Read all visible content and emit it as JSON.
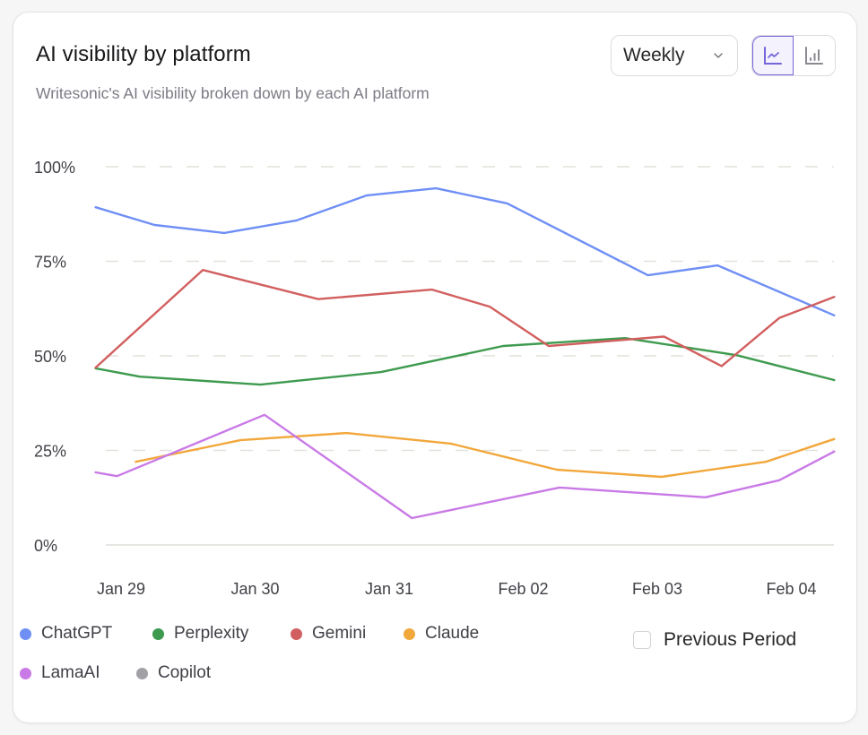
{
  "card": {
    "title": "AI visibility by platform",
    "subtitle": "Writesonic's AI visibility broken down by each AI platform"
  },
  "controls": {
    "period_select": {
      "value": "Weekly",
      "icon": "chevron-down-icon"
    },
    "view_toggle": [
      {
        "name": "line-chart-view",
        "icon": "line-chart-icon",
        "active": true
      },
      {
        "name": "bar-chart-view",
        "icon": "bar-chart-icon",
        "active": false
      }
    ],
    "accent_color": "#7566d9"
  },
  "previous_period": {
    "label": "Previous Period",
    "checked": false
  },
  "chart_data": {
    "type": "line",
    "title": "AI visibility by platform",
    "xlabel": "",
    "ylabel": "",
    "x_ticks": [
      "Jan 29",
      "Jan 30",
      "Jan 31",
      "Feb 02",
      "Feb 03",
      "Feb 04"
    ],
    "x_range": [
      -0.19,
      5.32
    ],
    "x_note": "x values are positions in tick units (Jan 29 = 0, each tick = 1)",
    "y_ticks": [
      "0%",
      "25%",
      "50%",
      "75%",
      "100%"
    ],
    "y_tick_values": [
      0,
      25,
      50,
      75,
      100
    ],
    "ylim": [
      0,
      100
    ],
    "grid": true,
    "legend_position": "bottom-left",
    "series": [
      {
        "name": "ChatGPT",
        "color": "#6f8ff5",
        "points": [
          [
            -0.19,
            89.3
          ],
          [
            0.25,
            84.6
          ],
          [
            0.77,
            82.5
          ],
          [
            1.31,
            85.8
          ],
          [
            1.83,
            92.4
          ],
          [
            2.35,
            94.3
          ],
          [
            2.88,
            90.3
          ],
          [
            3.93,
            71.3
          ],
          [
            4.45,
            73.9
          ],
          [
            5.32,
            60.7
          ]
        ]
      },
      {
        "name": "Perplexity",
        "color": "#3d9a4e",
        "points": [
          [
            -0.19,
            46.7
          ],
          [
            0.14,
            44.5
          ],
          [
            1.04,
            42.4
          ],
          [
            1.94,
            45.7
          ],
          [
            2.85,
            52.6
          ],
          [
            3.76,
            54.7
          ],
          [
            4.59,
            50.2
          ],
          [
            5.32,
            43.6
          ]
        ]
      },
      {
        "name": "Gemini",
        "color": "#d25f5f",
        "points": [
          [
            -0.19,
            46.9
          ],
          [
            0.61,
            72.7
          ],
          [
            1.47,
            65.0
          ],
          [
            2.32,
            67.5
          ],
          [
            2.75,
            63.0
          ],
          [
            3.19,
            52.6
          ],
          [
            4.05,
            55.1
          ],
          [
            4.48,
            47.3
          ],
          [
            4.91,
            60.0
          ],
          [
            5.32,
            65.6
          ]
        ]
      },
      {
        "name": "Claude",
        "color": "#f2a73b",
        "points": [
          [
            0.11,
            22.0
          ],
          [
            0.89,
            27.7
          ],
          [
            1.68,
            29.6
          ],
          [
            2.46,
            26.8
          ],
          [
            3.25,
            19.9
          ],
          [
            4.03,
            18.0
          ],
          [
            4.81,
            22.0
          ],
          [
            5.32,
            28.0
          ]
        ]
      },
      {
        "name": "LamaAI",
        "color": "#c97ae6",
        "points": [
          [
            -0.19,
            19.2
          ],
          [
            -0.03,
            18.2
          ],
          [
            1.07,
            34.4
          ],
          [
            2.17,
            7.1
          ],
          [
            3.27,
            15.2
          ],
          [
            4.36,
            12.6
          ],
          [
            4.91,
            17.1
          ],
          [
            5.32,
            24.7
          ]
        ]
      },
      {
        "name": "Copilot",
        "color": "#a1a1a6",
        "points": []
      }
    ]
  }
}
